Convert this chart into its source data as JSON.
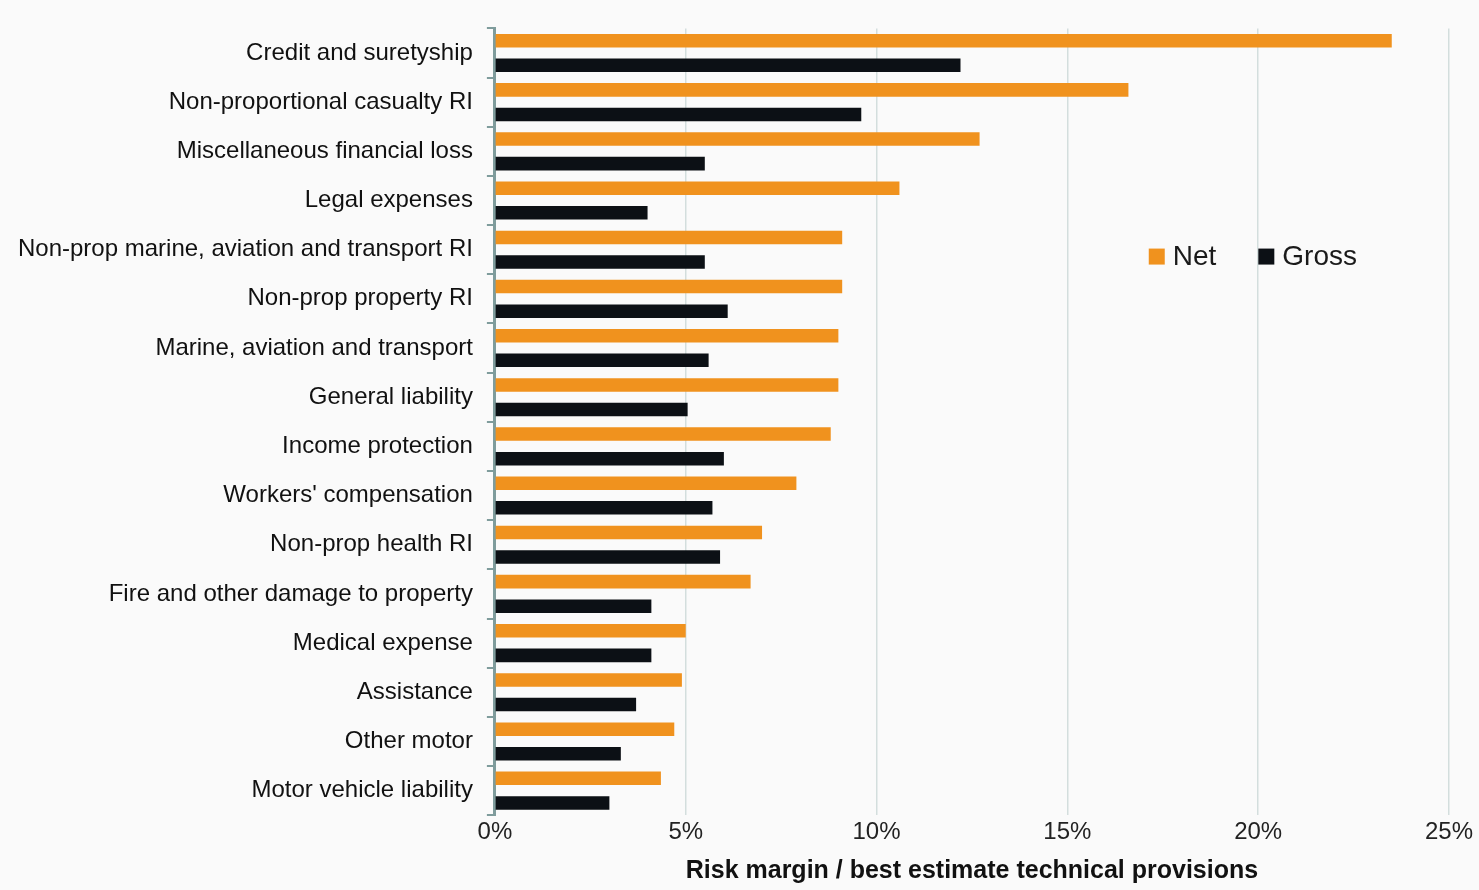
{
  "chart_data": {
    "type": "bar",
    "orientation": "horizontal",
    "xlabel": "Risk margin / best estimate technical provisions",
    "categories": [
      "Credit and suretyship",
      "Non-proportional casualty RI",
      "Miscellaneous financial loss",
      "Legal expenses",
      "Non-prop marine, aviation and transport RI",
      "Non-prop property RI",
      "Marine, aviation and transport",
      "General liability",
      "Income protection",
      "Workers' compensation",
      "Non-prop health RI",
      "Fire and other damage to property",
      "Medical expense",
      "Assistance",
      "Other motor",
      "Motor vehicle liability"
    ],
    "series": [
      {
        "name": "Net",
        "color": "#f0921e",
        "values": [
          23.5,
          16.6,
          12.7,
          10.6,
          9.1,
          9.1,
          9.0,
          9.0,
          8.8,
          7.9,
          7.0,
          6.7,
          5.0,
          4.9,
          4.7,
          4.35
        ]
      },
      {
        "name": "Gross",
        "color": "#0c1015",
        "values": [
          12.2,
          9.6,
          5.5,
          4.0,
          5.5,
          6.1,
          5.6,
          5.05,
          6.0,
          5.7,
          5.9,
          4.1,
          4.1,
          3.7,
          3.3,
          3.0
        ]
      }
    ],
    "xlim": [
      0,
      25
    ],
    "xticks": [
      {
        "value": 0,
        "label": "0%"
      },
      {
        "value": 5,
        "label": "5%"
      },
      {
        "value": 10,
        "label": "10%"
      },
      {
        "value": 15,
        "label": "15%"
      },
      {
        "value": 20,
        "label": "20%"
      },
      {
        "value": 25,
        "label": "25%"
      }
    ],
    "grid": "x",
    "legend": "right"
  }
}
